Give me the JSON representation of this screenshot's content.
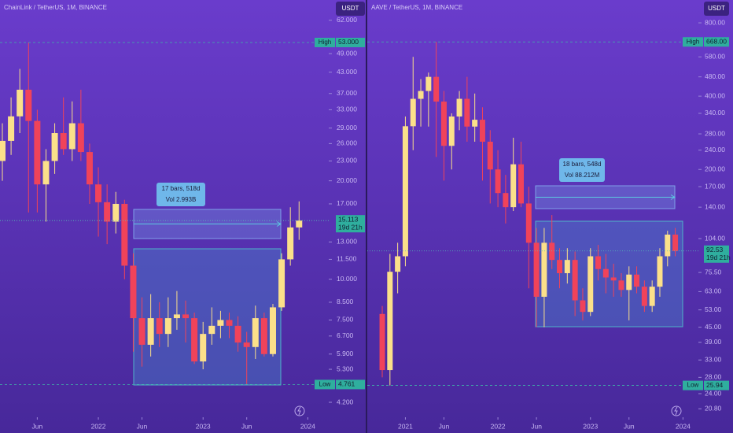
{
  "chart_data": [
    {
      "type": "candlestick",
      "title": "ChainLink / TetherUS, 1M, BINANCE",
      "unit": "USDT",
      "log": true,
      "up_color": "#fbe08a",
      "down_color": "#f0435a",
      "open": [
        23,
        26.5,
        31.5,
        38,
        30.5,
        19.5,
        23,
        28,
        25,
        30,
        24.5,
        19.5,
        17.2,
        15,
        17,
        11,
        7.6,
        6.3,
        7.6,
        6.8,
        7.6,
        7.8,
        7.6,
        5.6,
        6.8,
        7.2,
        7.5,
        7.2,
        6.4,
        6.2,
        7.6,
        5.9,
        8.2,
        11.5,
        14.4
      ],
      "high": [
        30,
        36,
        44,
        53,
        33,
        25,
        30,
        36,
        35,
        38,
        26,
        22,
        19.5,
        18.5,
        17.5,
        12,
        8.8,
        9,
        8.5,
        8.8,
        9.2,
        8.6,
        7.9,
        7.4,
        8.2,
        8.0,
        7.9,
        7.7,
        6.9,
        8.3,
        7.9,
        8.4,
        12,
        16.6,
        17.3
      ],
      "low": [
        20,
        24,
        28,
        16,
        16,
        15,
        21,
        24,
        23,
        23,
        17,
        13.5,
        12.8,
        13.8,
        10,
        6,
        5.4,
        5.8,
        6.2,
        6.2,
        7,
        6.4,
        5.5,
        5.3,
        6.3,
        6.6,
        6.6,
        6.0,
        4.761,
        5.7,
        5.8,
        5.8,
        8.0,
        11,
        13.2
      ],
      "close": [
        26.5,
        31.5,
        38,
        30.5,
        19.5,
        23,
        28,
        25,
        30,
        24.5,
        19.5,
        17.2,
        15,
        17,
        11,
        7.6,
        6.3,
        7.6,
        6.8,
        7.6,
        7.8,
        7.6,
        5.6,
        6.8,
        7.2,
        7.5,
        7.2,
        6.4,
        6.2,
        7.6,
        5.9,
        8.2,
        11.5,
        14.4,
        15.113
      ],
      "xlim": [
        -0.27,
        37.4
      ],
      "xticks": [
        {
          "value": 4,
          "label": "Jun"
        },
        {
          "value": 11,
          "label": "2022"
        },
        {
          "value": 16,
          "label": "Jun"
        },
        {
          "value": 23,
          "label": "2023"
        },
        {
          "value": 28,
          "label": "Jun"
        },
        {
          "value": 35,
          "label": "2024"
        }
      ],
      "ylim": [
        3.78,
        71.5
      ],
      "yticks": [
        {
          "value": 62,
          "label": "62.000"
        },
        {
          "value": 49,
          "label": "49.000"
        },
        {
          "value": 43,
          "label": "43.000"
        },
        {
          "value": 37,
          "label": "37.000"
        },
        {
          "value": 33,
          "label": "33.000"
        },
        {
          "value": 29,
          "label": "29.000"
        },
        {
          "value": 26,
          "label": "26.000"
        },
        {
          "value": 23,
          "label": "23.000"
        },
        {
          "value": 20,
          "label": "20.000"
        },
        {
          "value": 17,
          "label": "17.000"
        },
        {
          "value": 13,
          "label": "13.000"
        },
        {
          "value": 11.5,
          "label": "11.500"
        },
        {
          "value": 10,
          "label": "10.000"
        },
        {
          "value": 8.5,
          "label": "8.500"
        },
        {
          "value": 7.5,
          "label": "7.500"
        },
        {
          "value": 6.7,
          "label": "6.700"
        },
        {
          "value": 5.9,
          "label": "5.900"
        },
        {
          "value": 5.3,
          "label": "5.300"
        },
        {
          "value": 4.2,
          "label": "4.200"
        }
      ],
      "high_marker": {
        "text": "High",
        "value": 53,
        "label": "53.000"
      },
      "low_marker": {
        "text": "Low",
        "value": 4.761,
        "label": "4.761"
      },
      "last_price": {
        "value": 15.113,
        "label": "15.113",
        "countdown": "19d 21h"
      },
      "annotations": [
        "17 bars, 518d",
        "Vol 2.993B"
      ]
    },
    {
      "type": "candlestick",
      "title": "AAVE / TetherUS, 1M, BINANCE",
      "unit": "USDT",
      "log": true,
      "up_color": "#fbe08a",
      "down_color": "#f0435a",
      "open": [
        51,
        30,
        76,
        88,
        301,
        390,
        420,
        480,
        380,
        250,
        330,
        390,
        300,
        320,
        260,
        200,
        160,
        140,
        210,
        145,
        100,
        60,
        100,
        85,
        75,
        85,
        58,
        52,
        88,
        78,
        72,
        70,
        64,
        74,
        66,
        55,
        66,
        88,
        108
      ],
      "high": [
        55,
        90,
        100,
        330,
        580,
        470,
        500,
        668,
        420,
        340,
        420,
        480,
        410,
        360,
        290,
        240,
        190,
        270,
        260,
        170,
        115,
        115,
        130,
        95,
        95,
        92,
        65,
        95,
        98,
        90,
        82,
        75,
        80,
        80,
        70,
        70,
        95,
        112,
        115
      ],
      "low": [
        28,
        25.94,
        62,
        80,
        240,
        300,
        300,
        225,
        180,
        200,
        290,
        260,
        260,
        180,
        145,
        140,
        120,
        135,
        140,
        65,
        45,
        45,
        78,
        65,
        68,
        50,
        48,
        50,
        70,
        62,
        60,
        60,
        48,
        62,
        52,
        52,
        60,
        80,
        88
      ],
      "close": [
        30,
        76,
        88,
        301,
        390,
        420,
        480,
        380,
        250,
        330,
        390,
        300,
        320,
        260,
        200,
        160,
        140,
        210,
        145,
        100,
        60,
        100,
        85,
        75,
        85,
        58,
        52,
        88,
        78,
        72,
        70,
        64,
        74,
        66,
        55,
        66,
        88,
        108,
        92.53
      ],
      "xlim": [
        -1.94,
        41.0
      ],
      "xticks": [
        {
          "value": 3,
          "label": "2021"
        },
        {
          "value": 8,
          "label": "Jun"
        },
        {
          "value": 15,
          "label": "2022"
        },
        {
          "value": 20,
          "label": "Jun"
        },
        {
          "value": 27,
          "label": "2023"
        },
        {
          "value": 32,
          "label": "Jun"
        },
        {
          "value": 39,
          "label": "2024"
        }
      ],
      "ylim": [
        19.2,
        993
      ],
      "yticks": [
        {
          "value": 800,
          "label": "800.00"
        },
        {
          "value": 580,
          "label": "580.00"
        },
        {
          "value": 480,
          "label": "480.00"
        },
        {
          "value": 400,
          "label": "400.00"
        },
        {
          "value": 340,
          "label": "340.00"
        },
        {
          "value": 280,
          "label": "280.00"
        },
        {
          "value": 240,
          "label": "240.00"
        },
        {
          "value": 200,
          "label": "200.00"
        },
        {
          "value": 170,
          "label": "170.00"
        },
        {
          "value": 140,
          "label": "140.00"
        },
        {
          "value": 104,
          "label": "104.00"
        },
        {
          "value": 75.5,
          "label": "75.50"
        },
        {
          "value": 63,
          "label": "63.00"
        },
        {
          "value": 53,
          "label": "53.00"
        },
        {
          "value": 45,
          "label": "45.00"
        },
        {
          "value": 39,
          "label": "39.00"
        },
        {
          "value": 33,
          "label": "33.00"
        },
        {
          "value": 28,
          "label": "28.00"
        },
        {
          "value": 24,
          "label": "24.00"
        },
        {
          "value": 20.8,
          "label": "20.80"
        }
      ],
      "high_marker": {
        "text": "High",
        "value": 668,
        "label": "668.00"
      },
      "low_marker": {
        "text": "Low",
        "value": 25.94,
        "label": "25.94"
      },
      "last_price": {
        "value": 92.53,
        "label": "92.53",
        "countdown": "19d 21h"
      },
      "annotations": [
        "18 bars, 548d",
        "Vol 88.212M"
      ]
    }
  ]
}
